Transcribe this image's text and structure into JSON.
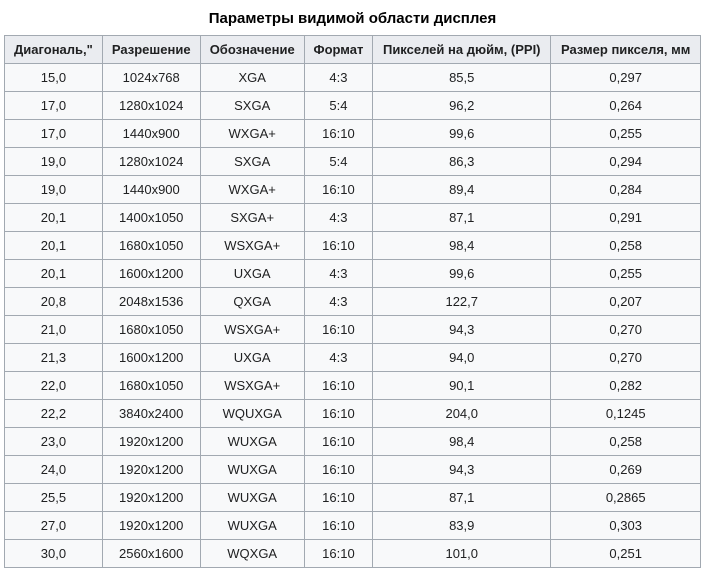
{
  "title": "Параметры видимой области дисплея",
  "columns": [
    "Диагональ,\"",
    "Разрешение",
    "Обозначение",
    "Формат",
    "Пикселей на дюйм, (PPI)",
    "Размер пикселя, мм"
  ],
  "rows": [
    [
      "15,0",
      "1024x768",
      "XGA",
      "4:3",
      "85,5",
      "0,297"
    ],
    [
      "17,0",
      "1280x1024",
      "SXGA",
      "5:4",
      "96,2",
      "0,264"
    ],
    [
      "17,0",
      "1440x900",
      "WXGA+",
      "16:10",
      "99,6",
      "0,255"
    ],
    [
      "19,0",
      "1280x1024",
      "SXGA",
      "5:4",
      "86,3",
      "0,294"
    ],
    [
      "19,0",
      "1440x900",
      "WXGA+",
      "16:10",
      "89,4",
      "0,284"
    ],
    [
      "20,1",
      "1400x1050",
      "SXGA+",
      "4:3",
      "87,1",
      "0,291"
    ],
    [
      "20,1",
      "1680x1050",
      "WSXGA+",
      "16:10",
      "98,4",
      "0,258"
    ],
    [
      "20,1",
      "1600x1200",
      "UXGA",
      "4:3",
      "99,6",
      "0,255"
    ],
    [
      "20,8",
      "2048x1536",
      "QXGA",
      "4:3",
      "122,7",
      "0,207"
    ],
    [
      "21,0",
      "1680x1050",
      "WSXGA+",
      "16:10",
      "94,3",
      "0,270"
    ],
    [
      "21,3",
      "1600x1200",
      "UXGA",
      "4:3",
      "94,0",
      "0,270"
    ],
    [
      "22,0",
      "1680x1050",
      "WSXGA+",
      "16:10",
      "90,1",
      "0,282"
    ],
    [
      "22,2",
      "3840x2400",
      "WQUXGA",
      "16:10",
      "204,0",
      "0,1245"
    ],
    [
      "23,0",
      "1920x1200",
      "WUXGA",
      "16:10",
      "98,4",
      "0,258"
    ],
    [
      "24,0",
      "1920x1200",
      "WUXGA",
      "16:10",
      "94,3",
      "0,269"
    ],
    [
      "25,5",
      "1920x1200",
      "WUXGA",
      "16:10",
      "87,1",
      "0,2865"
    ],
    [
      "27,0",
      "1920x1200",
      "WUXGA",
      "16:10",
      "83,9",
      "0,303"
    ],
    [
      "30,0",
      "2560x1600",
      "WQXGA",
      "16:10",
      "101,0",
      "0,251"
    ]
  ],
  "style": {
    "header_bg": "#eaecf0",
    "cell_bg": "#f8f9fa",
    "border_color": "#a2a9b1",
    "text_color": "#202122",
    "title_fontsize": 15,
    "cell_fontsize": 13
  }
}
